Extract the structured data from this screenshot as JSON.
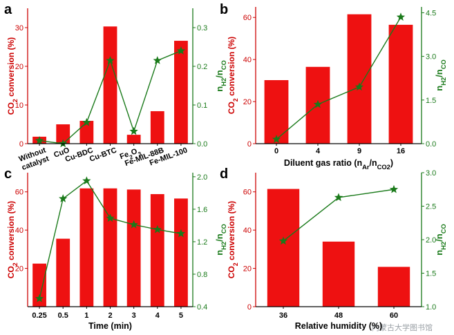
{
  "colors": {
    "bar": "#ee1111",
    "line": "#1a7a1a",
    "axis_left": "#cc0000",
    "axis_right": "#1a7a1a",
    "axis_bottom": "#000000"
  },
  "watermark": "内蒙古大学图书馆",
  "chart_data": [
    {
      "type": "bar",
      "panel": "a",
      "categories": [
        [
          "Without",
          "catalyst"
        ],
        [
          "CuO"
        ],
        [
          "Cu-BDC"
        ],
        [
          "Cu-BTC"
        ],
        [
          "Fe₂O₃"
        ],
        [
          "Fe-MIL-88B"
        ],
        [
          "Fe-MIL-100"
        ]
      ],
      "xlabel": "",
      "ylabel_left": "CO₂ conversion (%)",
      "ylabel_right": "n_H₂/n_CO",
      "ylim_left": [
        0,
        35
      ],
      "yticks_left": [
        0,
        10,
        20,
        30
      ],
      "yticklabels_left": [
        "0",
        "10",
        "20",
        "30"
      ],
      "ylim_right": [
        0,
        0.35
      ],
      "yticks_right": [
        0.0,
        0.1,
        0.2,
        0.3
      ],
      "yticklabels_right": [
        "0.0",
        "0.1",
        "0.2",
        "0.3"
      ],
      "series": [
        {
          "kind": "bar",
          "axis": "left",
          "values": [
            1.8,
            5.0,
            5.9,
            30.3,
            2.3,
            8.4,
            26.6
          ]
        },
        {
          "kind": "line",
          "axis": "right",
          "values": [
            0.008,
            0.0,
            0.055,
            0.215,
            0.032,
            0.215,
            0.24
          ]
        }
      ]
    },
    {
      "type": "bar",
      "panel": "b",
      "categories": [
        [
          "0"
        ],
        [
          "4"
        ],
        [
          "9"
        ],
        [
          "16"
        ]
      ],
      "xlabel": "Diluent gas ratio (n_Ar/n_CO₂)",
      "ylabel_left": "CO₂ conversion (%)",
      "ylabel_right": "n_H₂/n_CO",
      "ylim_left": [
        0,
        65
      ],
      "yticks_left": [
        0,
        20,
        40,
        60
      ],
      "yticklabels_left": [
        "0",
        "20",
        "40",
        "60"
      ],
      "ylim_right": [
        0,
        4.7
      ],
      "yticks_right": [
        0.0,
        1.5,
        3.0,
        4.5
      ],
      "yticklabels_right": [
        "0.0",
        "1.5",
        "3.0",
        "4.5"
      ],
      "series": [
        {
          "kind": "bar",
          "axis": "left",
          "values": [
            30.2,
            36.5,
            61.5,
            56.5
          ]
        },
        {
          "kind": "line",
          "axis": "right",
          "values": [
            0.15,
            1.35,
            1.95,
            4.35
          ]
        }
      ]
    },
    {
      "type": "bar",
      "panel": "c",
      "categories": [
        [
          "0.25"
        ],
        [
          "0.5"
        ],
        [
          "1"
        ],
        [
          "2"
        ],
        [
          "3"
        ],
        [
          "4"
        ],
        [
          "5"
        ]
      ],
      "xlabel": "Time (min)",
      "ylabel_left": "CO₂ conversion (%)",
      "ylabel_right": "n_H₂/n_CO",
      "ylim_left": [
        0,
        70
      ],
      "yticks_left": [
        20,
        40,
        60
      ],
      "yticklabels_left": [
        "20",
        "40",
        "60"
      ],
      "ylim_right": [
        0.4,
        2.05
      ],
      "yticks_right": [
        0.4,
        0.8,
        1.2,
        1.6,
        2.0
      ],
      "yticklabels_right": [
        "0.4",
        "0.8",
        "1.2",
        "1.6",
        "2.0"
      ],
      "series": [
        {
          "kind": "bar",
          "axis": "left",
          "values": [
            22.5,
            35.5,
            61.8,
            61.8,
            61.2,
            58.8,
            56.5
          ]
        },
        {
          "kind": "line",
          "axis": "right",
          "values": [
            0.5,
            1.73,
            1.95,
            1.49,
            1.41,
            1.35,
            1.3
          ]
        }
      ]
    },
    {
      "type": "bar",
      "panel": "d",
      "categories": [
        [
          "36"
        ],
        [
          "48"
        ],
        [
          "60"
        ]
      ],
      "xlabel": "Relative humidity (%)",
      "ylabel_left": "CO₂ conversion (%)",
      "ylabel_right": "n_H₂/n_CO",
      "ylim_left": [
        0,
        70
      ],
      "yticks_left": [
        0,
        20,
        40,
        60
      ],
      "yticklabels_left": [
        "0",
        "20",
        "40",
        "60"
      ],
      "ylim_right": [
        1.0,
        3.0
      ],
      "yticks_right": [
        1.0,
        1.5,
        2.0,
        2.5,
        3.0
      ],
      "yticklabels_right": [
        "1.0",
        "1.5",
        "2.0",
        "2.5",
        "3.0"
      ],
      "series": [
        {
          "kind": "bar",
          "axis": "left",
          "values": [
            61.5,
            34.0,
            20.8
          ]
        },
        {
          "kind": "line",
          "axis": "right",
          "values": [
            1.98,
            2.63,
            2.75
          ]
        }
      ]
    }
  ]
}
